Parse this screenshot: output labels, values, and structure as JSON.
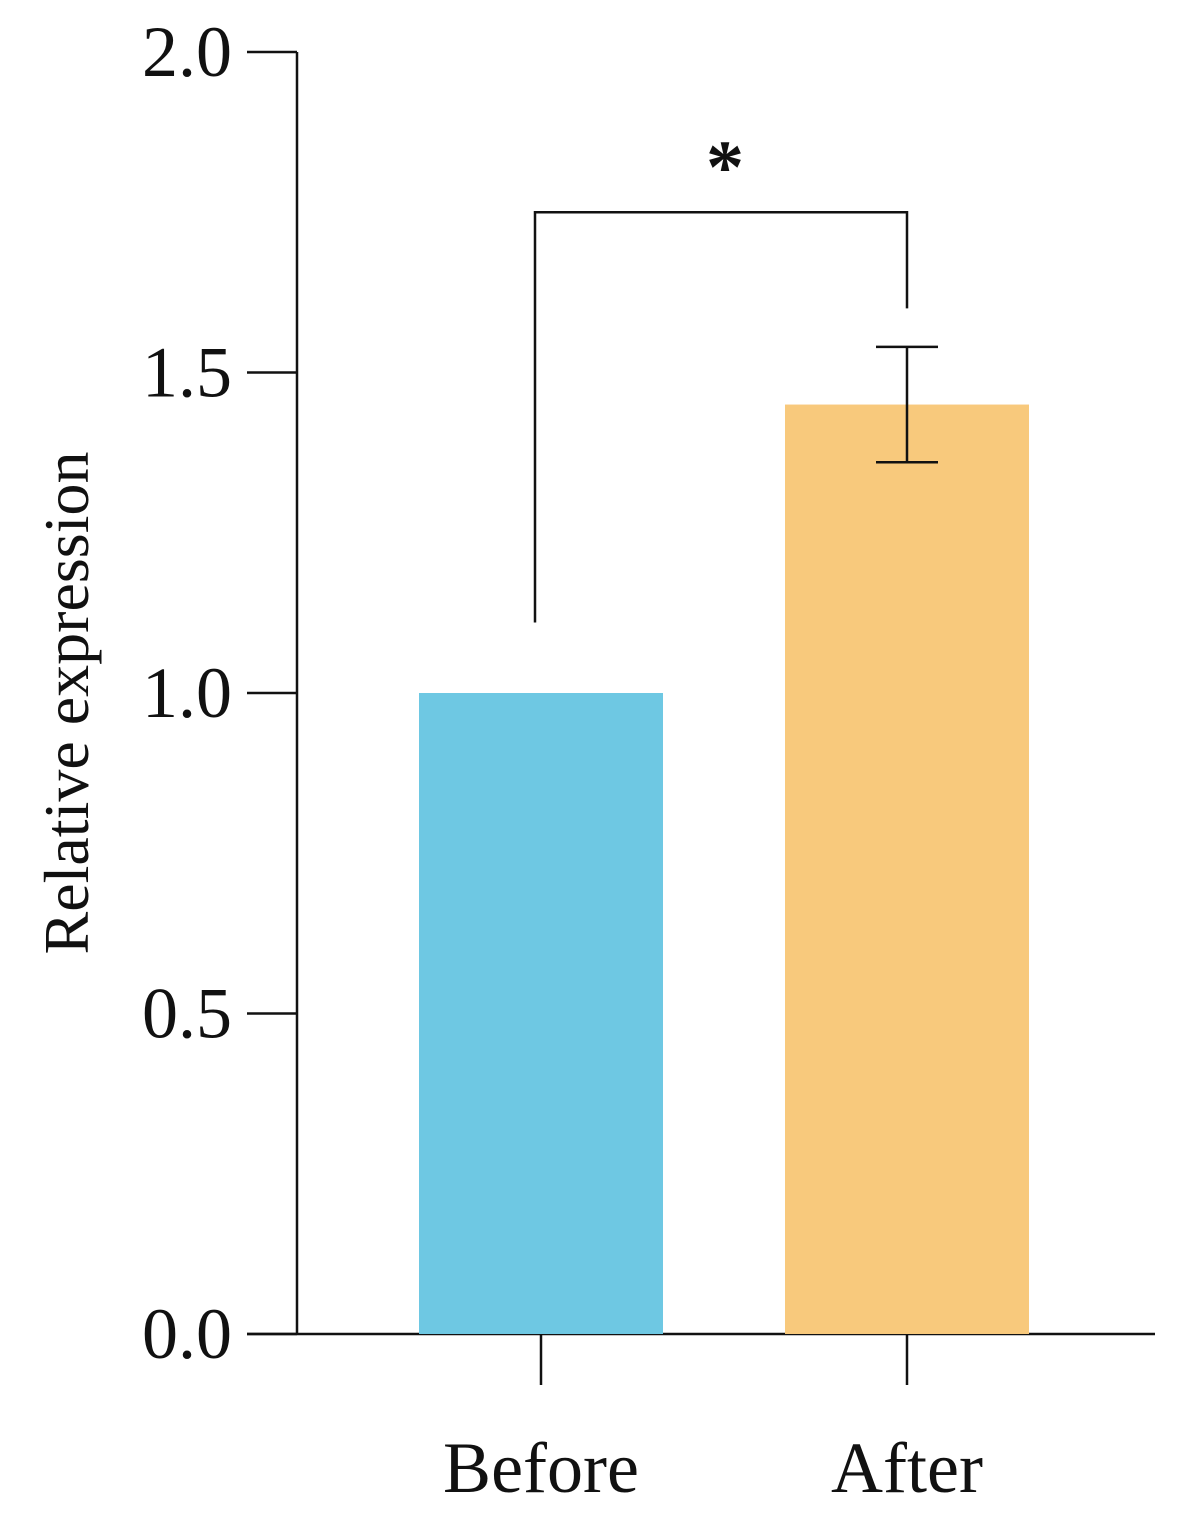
{
  "chart_data": {
    "type": "bar",
    "title": "",
    "xlabel": "",
    "ylabel": "Relative expression",
    "ylim": [
      0,
      2.0
    ],
    "yticks": [
      "0.0",
      "0.5",
      "1.0",
      "1.5",
      "2.0"
    ],
    "categories": [
      "Before",
      "After"
    ],
    "values": [
      1.0,
      1.45
    ],
    "error": [
      null,
      0.09
    ],
    "colors": [
      "#6ec8e3",
      "#f8c97c"
    ],
    "significance": {
      "label": "*",
      "between": [
        "Before",
        "After"
      ],
      "bracket_y": 1.75,
      "left_leg_bottom": 1.11,
      "right_leg_bottom": 1.6
    },
    "grid": false,
    "legend": "none"
  }
}
